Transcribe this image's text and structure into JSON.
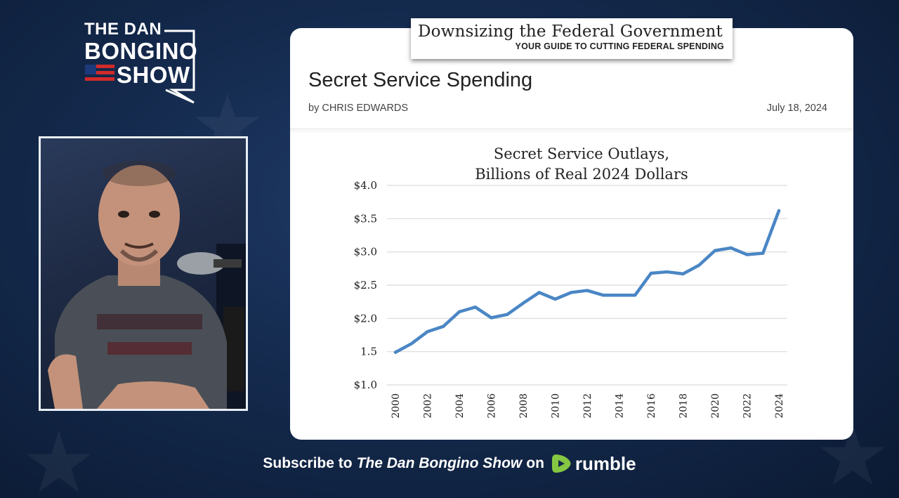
{
  "logo": {
    "line1": "THE DAN",
    "line2": "BONGINO",
    "line3": "SHOW"
  },
  "banner": {
    "title": "Downsizing the Federal Government",
    "subtitle": "YOUR GUIDE TO CUTTING FEDERAL SPENDING"
  },
  "article": {
    "title": "Secret Service Spending",
    "byline": "by CHRIS EDWARDS",
    "date": "July 18, 2024"
  },
  "chart_data": {
    "type": "line",
    "title_line1": "Secret Service Outlays,",
    "title_line2": "Billions of Real 2024 Dollars",
    "xlabel": "",
    "ylabel": "",
    "ylim": [
      1.0,
      4.0
    ],
    "y_ticks": [
      1.0,
      1.5,
      2.0,
      2.5,
      3.0,
      3.5,
      4.0
    ],
    "y_tick_labels": [
      "$1.0",
      "1.5",
      "$2.0",
      "$2.5",
      "$3.0",
      "$3.5",
      "$4.0"
    ],
    "x_tick_labels": [
      "2000",
      "2002",
      "2004",
      "2006",
      "2008",
      "2010",
      "2012",
      "2014",
      "2016",
      "2018",
      "2020",
      "2022",
      "2024"
    ],
    "grid": true,
    "line_color": "#4a86c5",
    "x": [
      2000,
      2001,
      2002,
      2003,
      2004,
      2005,
      2006,
      2007,
      2008,
      2009,
      2010,
      2011,
      2012,
      2013,
      2014,
      2015,
      2016,
      2017,
      2018,
      2019,
      2020,
      2021,
      2022,
      2023,
      2024
    ],
    "values": [
      1.49,
      1.62,
      1.8,
      1.88,
      2.1,
      2.17,
      2.01,
      2.06,
      2.23,
      2.39,
      2.29,
      2.39,
      2.42,
      2.35,
      2.35,
      2.35,
      2.68,
      2.7,
      2.67,
      2.8,
      3.02,
      3.06,
      2.96,
      2.98,
      3.62
    ]
  },
  "footer": {
    "prefix": "Subscribe to",
    "show": "The Dan Bongino Show",
    "on": "on",
    "platform": "rumble"
  },
  "colors": {
    "accent": "#4a86c5",
    "brand_green": "#85c742",
    "background": "#142a4d"
  }
}
